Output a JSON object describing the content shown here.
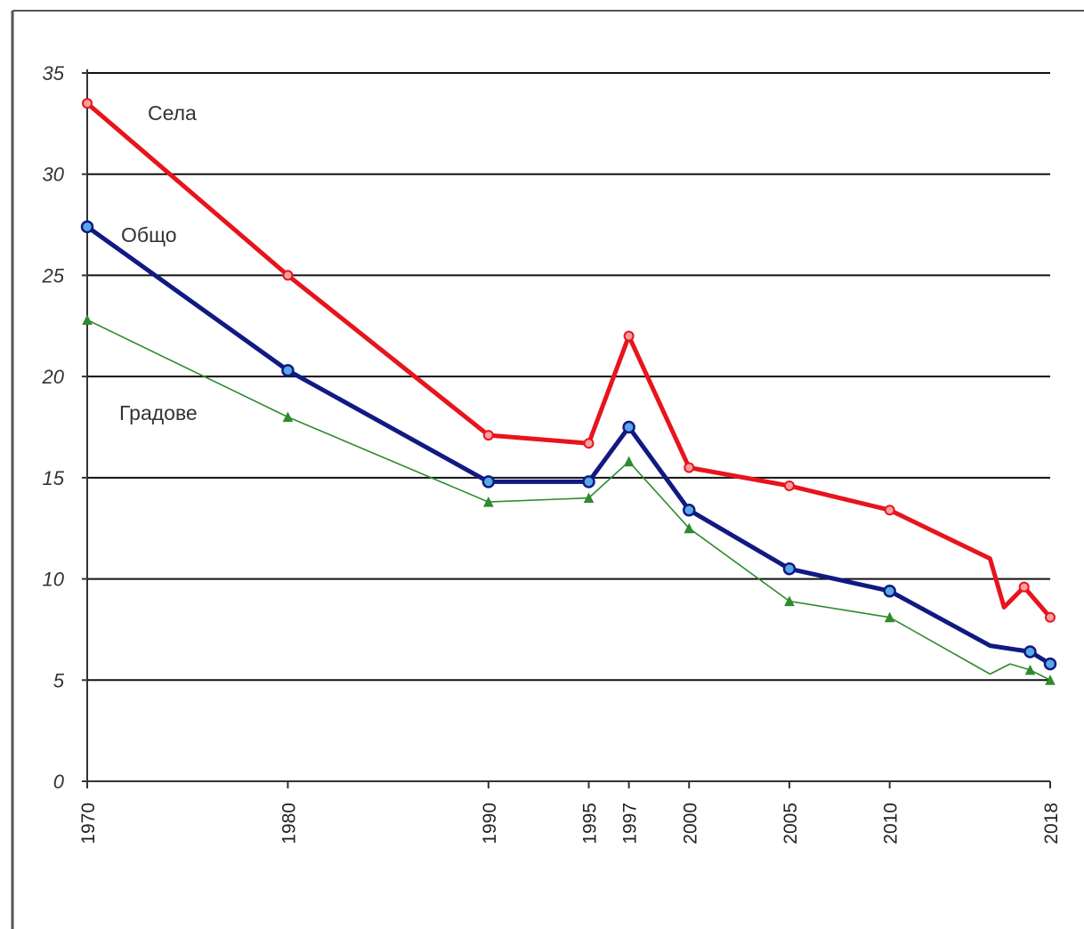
{
  "chart_data": {
    "type": "line",
    "title": "",
    "xlabel": "",
    "ylabel": "",
    "ylim": [
      0,
      35
    ],
    "yticks": [
      0,
      5,
      10,
      15,
      20,
      25,
      30,
      35
    ],
    "ytick_labels": [
      "0",
      "5",
      "10",
      "15",
      "20",
      "25",
      "30",
      "35"
    ],
    "xticks": [
      1970,
      1980,
      1990,
      1995,
      1997,
      2000,
      2005,
      2010,
      2018
    ],
    "xtick_labels": [
      "1970",
      "1980",
      "1990",
      "1995",
      "1997",
      "2000",
      "2005",
      "2010",
      "2018"
    ],
    "xlim": [
      1970,
      2018
    ],
    "grid": true,
    "legend": "inline labels",
    "series": [
      {
        "name": "Села",
        "color": "#e8141c",
        "marker": "circle",
        "x": [
          1970,
          1980,
          1990,
          1995,
          1997,
          2000,
          2005,
          2010,
          2015,
          2015.7,
          2016.7,
          2018
        ],
        "y": [
          33.5,
          25.0,
          17.1,
          16.7,
          22.0,
          15.5,
          14.6,
          13.4,
          11.0,
          8.6,
          9.6,
          8.1
        ],
        "marked": [
          true,
          true,
          true,
          true,
          true,
          true,
          true,
          true,
          false,
          false,
          true,
          true
        ]
      },
      {
        "name": "Общо",
        "color": "#101a82",
        "marker": "circle",
        "x": [
          1970,
          1980,
          1990,
          1995,
          1997,
          2000,
          2005,
          2010,
          2015,
          2017,
          2018
        ],
        "y": [
          27.4,
          20.3,
          14.8,
          14.8,
          17.5,
          13.4,
          10.5,
          9.4,
          6.7,
          6.4,
          5.8
        ],
        "marked": [
          true,
          true,
          true,
          true,
          true,
          true,
          true,
          true,
          false,
          true,
          true
        ]
      },
      {
        "name": "Градове",
        "color": "#2e8b2e",
        "marker": "triangle",
        "x": [
          1970,
          1980,
          1990,
          1995,
          1997,
          2000,
          2005,
          2010,
          2015,
          2016,
          2017,
          2018
        ],
        "y": [
          22.8,
          18.0,
          13.8,
          14.0,
          15.8,
          12.5,
          8.9,
          8.1,
          5.3,
          5.8,
          5.5,
          5.0
        ],
        "marked": [
          true,
          true,
          true,
          true,
          true,
          true,
          true,
          true,
          false,
          false,
          true,
          true
        ]
      }
    ]
  }
}
